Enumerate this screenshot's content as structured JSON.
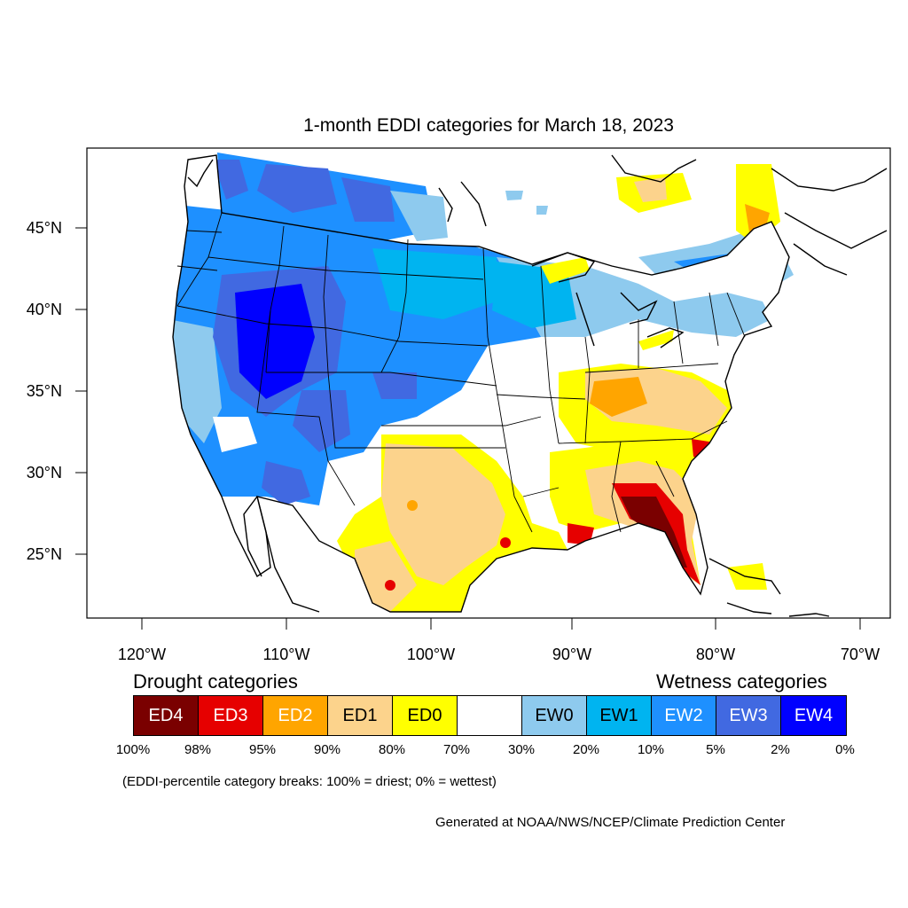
{
  "title": "1-month EDDI categories for March 18, 2023",
  "axes": {
    "lat_labels": [
      "45°N",
      "40°N",
      "35°N",
      "30°N",
      "25°N"
    ],
    "lon_labels": [
      "120°W",
      "110°W",
      "100°W",
      "90°W",
      "80°W",
      "70°W"
    ]
  },
  "legend": {
    "drought_heading": "Drought categories",
    "wetness_heading": "Wetness categories",
    "categories": [
      {
        "label": "ED4",
        "color": "#7a0000",
        "text_color": "#ffffff"
      },
      {
        "label": "ED3",
        "color": "#e60000",
        "text_color": "#ffffff"
      },
      {
        "label": "ED2",
        "color": "#ffa500",
        "text_color": "#ffffff"
      },
      {
        "label": "ED1",
        "color": "#fcd38c",
        "text_color": "#000000"
      },
      {
        "label": "ED0",
        "color": "#ffff00",
        "text_color": "#000000"
      },
      {
        "label": "",
        "color": "#ffffff",
        "text_color": "#000000"
      },
      {
        "label": "EW0",
        "color": "#8ecaee",
        "text_color": "#000000"
      },
      {
        "label": "EW1",
        "color": "#00b4f0",
        "text_color": "#000000"
      },
      {
        "label": "EW2",
        "color": "#1e90ff",
        "text_color": "#ffffff"
      },
      {
        "label": "EW3",
        "color": "#4169e1",
        "text_color": "#ffffff"
      },
      {
        "label": "EW4",
        "color": "#0000ff",
        "text_color": "#ffffff"
      }
    ],
    "breaks": [
      "100%",
      "98%",
      "95%",
      "90%",
      "80%",
      "70%",
      "30%",
      "20%",
      "10%",
      "5%",
      "2%",
      "0%"
    ]
  },
  "note": "(EDDI-percentile category breaks: 100% = driest; 0% = wettest)",
  "credit": "Generated at NOAA/NWS/NCEP/Climate Prediction Center"
}
